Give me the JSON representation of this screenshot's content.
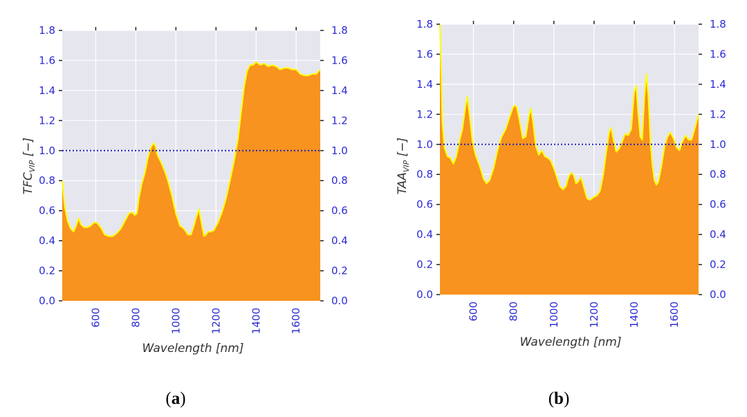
{
  "colors": {
    "plot_bg": "#e6e6ef",
    "grid": "#ffffff",
    "fill": "#f7931e",
    "edge": "#ffff00",
    "threshold": "#1f1fbf",
    "tick_text": "#2b2bd4"
  },
  "chart_data": [
    {
      "id": "a",
      "type": "area",
      "caption": {
        "open": "(",
        "letter": "a",
        "close": ")"
      },
      "xlabel": "Wavelength [nm]",
      "ylabel": {
        "main": "TFC",
        "sub": "VIP",
        "tail": " [−]"
      },
      "xlim": [
        433,
        1720
      ],
      "ylim": [
        0,
        1.8
      ],
      "xticks": [
        600,
        800,
        1000,
        1200,
        1400,
        1600
      ],
      "yticks": [
        0.0,
        0.2,
        0.4,
        0.6,
        0.8,
        1.0,
        1.2,
        1.4,
        1.6,
        1.8
      ],
      "ytick_labels": [
        "0.0",
        "0.2",
        "0.4",
        "0.6",
        "0.8",
        "1.0",
        "1.2",
        "1.4",
        "1.6",
        "1.8"
      ],
      "threshold": 1.0,
      "x": [
        433,
        445,
        460,
        475,
        490,
        505,
        515,
        525,
        540,
        560,
        575,
        590,
        605,
        625,
        645,
        665,
        685,
        705,
        725,
        745,
        765,
        780,
        795,
        805,
        815,
        830,
        845,
        860,
        875,
        888,
        898,
        905,
        915,
        930,
        945,
        960,
        980,
        1000,
        1020,
        1040,
        1060,
        1075,
        1090,
        1100,
        1115,
        1130,
        1140,
        1150,
        1160,
        1175,
        1190,
        1210,
        1230,
        1250,
        1270,
        1290,
        1310,
        1325,
        1340,
        1355,
        1370,
        1385,
        1400,
        1420,
        1440,
        1460,
        1480,
        1500,
        1520,
        1540,
        1560,
        1580,
        1600,
        1620,
        1640,
        1660,
        1680,
        1700,
        1720
      ],
      "values": [
        0.8,
        0.63,
        0.53,
        0.48,
        0.46,
        0.51,
        0.55,
        0.51,
        0.49,
        0.49,
        0.5,
        0.52,
        0.52,
        0.49,
        0.44,
        0.43,
        0.43,
        0.45,
        0.48,
        0.53,
        0.58,
        0.59,
        0.57,
        0.58,
        0.68,
        0.78,
        0.85,
        0.95,
        1.02,
        1.05,
        1.03,
        0.98,
        0.95,
        0.91,
        0.86,
        0.8,
        0.7,
        0.58,
        0.5,
        0.48,
        0.44,
        0.44,
        0.5,
        0.55,
        0.61,
        0.5,
        0.43,
        0.44,
        0.46,
        0.46,
        0.47,
        0.52,
        0.59,
        0.68,
        0.8,
        0.93,
        1.08,
        1.25,
        1.42,
        1.53,
        1.57,
        1.57,
        1.59,
        1.57,
        1.58,
        1.56,
        1.57,
        1.56,
        1.54,
        1.55,
        1.55,
        1.54,
        1.54,
        1.51,
        1.5,
        1.5,
        1.51,
        1.51,
        1.54
      ]
    },
    {
      "id": "b",
      "type": "area",
      "caption": {
        "open": "(",
        "letter": "b",
        "close": ")"
      },
      "xlabel": "Wavelength [nm]",
      "ylabel": {
        "main": "TAA",
        "sub": "VIP",
        "tail": " [−]"
      },
      "xlim": [
        433,
        1720
      ],
      "ylim": [
        0,
        1.8
      ],
      "xticks": [
        600,
        800,
        1000,
        1200,
        1400,
        1600
      ],
      "yticks": [
        0.0,
        0.2,
        0.4,
        0.6,
        0.8,
        1.0,
        1.2,
        1.4,
        1.6,
        1.8
      ],
      "ytick_labels": [
        "0.0",
        "0.2",
        "0.4",
        "0.6",
        "0.8",
        "1.0",
        "1.2",
        "1.4",
        "1.6",
        "1.8"
      ],
      "threshold": 1.0,
      "x": [
        433,
        438,
        445,
        455,
        470,
        485,
        500,
        515,
        530,
        545,
        560,
        570,
        580,
        595,
        610,
        630,
        650,
        665,
        680,
        700,
        720,
        740,
        760,
        780,
        795,
        805,
        815,
        830,
        845,
        860,
        875,
        885,
        895,
        910,
        925,
        940,
        955,
        970,
        985,
        1000,
        1015,
        1030,
        1045,
        1060,
        1070,
        1080,
        1090,
        1100,
        1110,
        1120,
        1135,
        1150,
        1165,
        1180,
        1200,
        1215,
        1230,
        1245,
        1260,
        1275,
        1285,
        1295,
        1310,
        1325,
        1340,
        1355,
        1370,
        1385,
        1400,
        1410,
        1420,
        1430,
        1440,
        1450,
        1460,
        1470,
        1480,
        1490,
        1500,
        1510,
        1520,
        1535,
        1550,
        1565,
        1580,
        1595,
        1610,
        1625,
        1640,
        1655,
        1670,
        1685,
        1700,
        1720
      ],
      "values": [
        1.8,
        1.55,
        1.15,
        0.98,
        0.92,
        0.91,
        0.87,
        0.92,
        1.02,
        1.1,
        1.25,
        1.32,
        1.2,
        1.02,
        0.93,
        0.86,
        0.77,
        0.74,
        0.76,
        0.84,
        0.96,
        1.05,
        1.1,
        1.18,
        1.24,
        1.26,
        1.25,
        1.15,
        1.04,
        1.05,
        1.18,
        1.24,
        1.16,
        0.99,
        0.93,
        0.96,
        0.92,
        0.91,
        0.89,
        0.84,
        0.78,
        0.72,
        0.7,
        0.72,
        0.77,
        0.8,
        0.81,
        0.79,
        0.74,
        0.75,
        0.78,
        0.71,
        0.64,
        0.63,
        0.65,
        0.66,
        0.69,
        0.79,
        0.94,
        1.08,
        1.11,
        1.04,
        0.95,
        0.97,
        1.02,
        1.07,
        1.06,
        1.1,
        1.35,
        1.39,
        1.2,
        1.05,
        1.03,
        1.3,
        1.47,
        1.32,
        1.02,
        0.86,
        0.76,
        0.73,
        0.75,
        0.85,
        0.98,
        1.05,
        1.08,
        1.04,
        0.98,
        0.96,
        1.02,
        1.06,
        1.03,
        1.03,
        1.1,
        1.2
      ]
    }
  ]
}
